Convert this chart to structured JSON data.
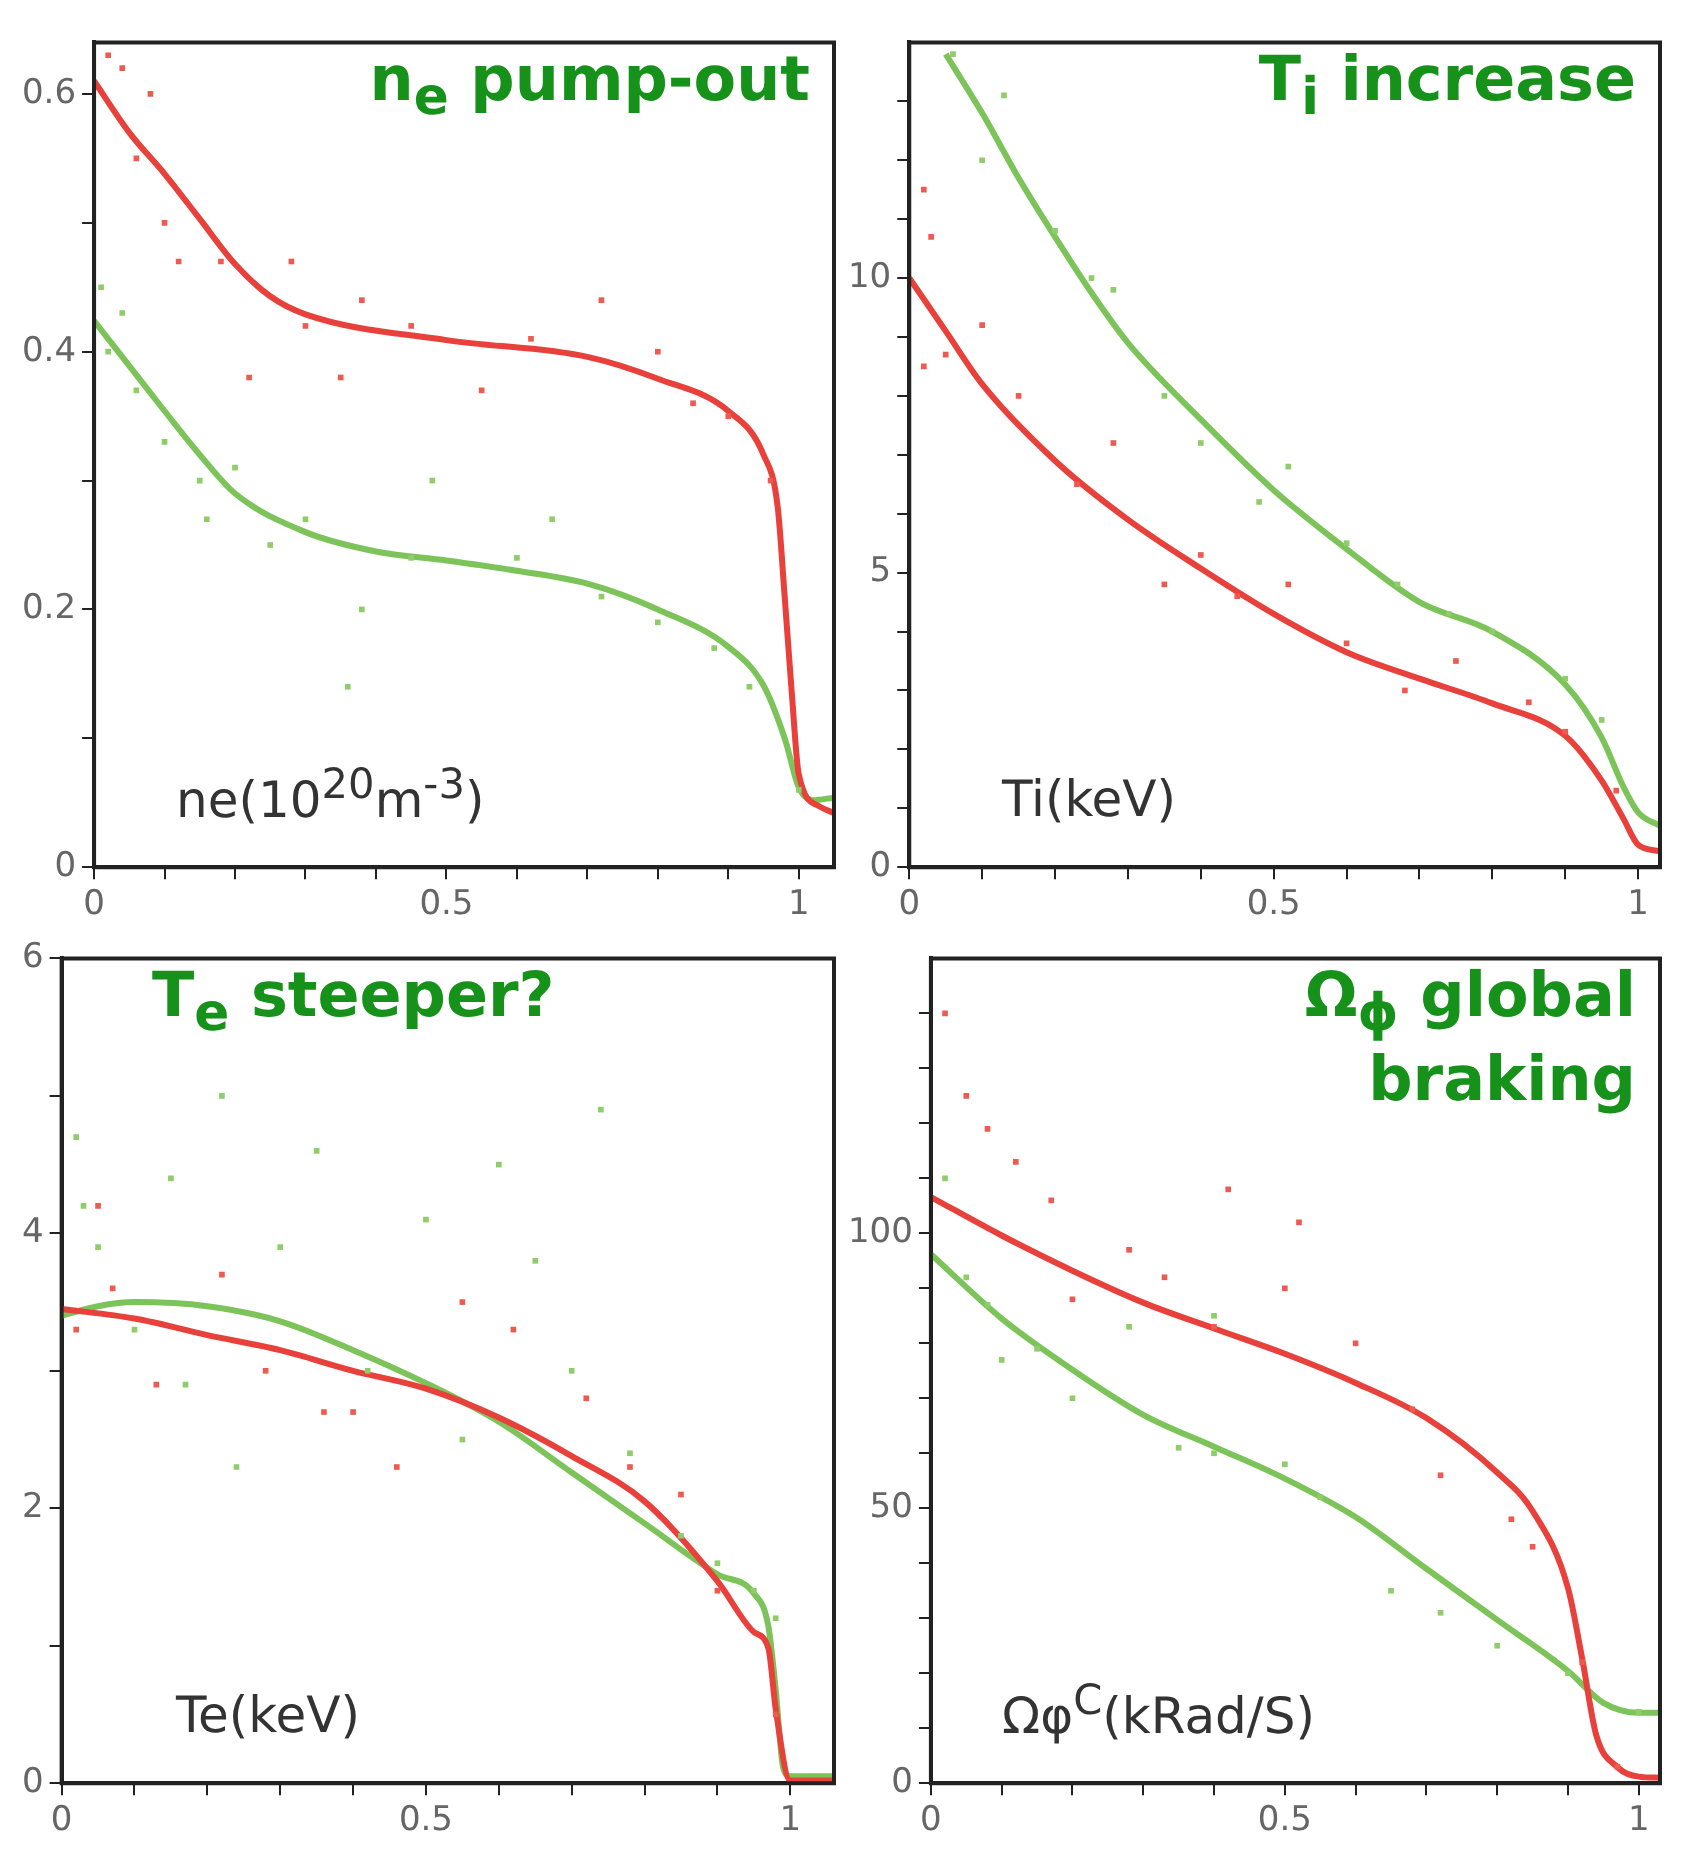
{
  "chart_data": [
    {
      "type": "line",
      "title": "n$_{e}$ pump-out",
      "annotations": [
        "ne(10$^{20}$m$^{-3}$)"
      ],
      "grid": false,
      "legend": false,
      "xlim": [
        0,
        1.05
      ],
      "xticks": [
        0,
        {
          "value": 0.1,
          "label": null
        },
        {
          "value": 0.2,
          "label": null
        },
        {
          "value": 0.3,
          "label": null
        },
        {
          "value": 0.4,
          "label": null
        },
        0.5,
        {
          "value": 0.6,
          "label": null
        },
        {
          "value": 0.7,
          "label": null
        },
        {
          "value": 0.8,
          "label": null
        },
        {
          "value": 0.9,
          "label": null
        },
        1
      ],
      "ylim": [
        0,
        0.64
      ],
      "yticks": [
        0,
        {
          "value": 0.1,
          "label": null
        },
        0.2,
        {
          "value": 0.3,
          "label": null
        },
        0.4,
        {
          "value": 0.5,
          "label": null
        },
        0.6
      ],
      "series": [
        {
          "marker": "none",
          "color": "#e8403a",
          "x": [
            0,
            0.05,
            0.1,
            0.15,
            0.2,
            0.25,
            0.3,
            0.5,
            0.7,
            0.8,
            0.9,
            0.95,
            0.97,
            0.98,
            0.99,
            1.0,
            1.03,
            1.05
          ],
          "values": [
            0.61,
            0.57,
            0.538,
            0.503,
            0.468,
            0.443,
            0.429,
            0.409,
            0.396,
            0.379,
            0.354,
            0.32,
            0.28,
            0.21,
            0.136,
            0.072,
            0.047,
            0.042
          ]
        },
        {
          "marker": "none",
          "color": "#7cc35a",
          "x": [
            0,
            0.05,
            0.1,
            0.15,
            0.2,
            0.3,
            0.4,
            0.5,
            0.6,
            0.7,
            0.8,
            0.9,
            0.95,
            0.98,
            1.0,
            1.02,
            1.05
          ],
          "values": [
            0.424,
            0.389,
            0.354,
            0.32,
            0.29,
            0.26,
            0.245,
            0.238,
            0.23,
            0.22,
            0.2,
            0.171,
            0.141,
            0.1,
            0.062,
            0.052,
            0.054
          ]
        },
        {
          "type": "scatter",
          "marker": "square",
          "color": "#ee5a50",
          "x": [
            0.02,
            0.04,
            0.06,
            0.08,
            0.1,
            0.12,
            0.18,
            0.22,
            0.28,
            0.3,
            0.35,
            0.38,
            0.45,
            0.55,
            0.62,
            0.72,
            0.8,
            0.85,
            0.9,
            0.96
          ],
          "values": [
            0.63,
            0.62,
            0.55,
            0.6,
            0.5,
            0.47,
            0.47,
            0.38,
            0.47,
            0.42,
            0.38,
            0.44,
            0.42,
            0.37,
            0.41,
            0.44,
            0.4,
            0.36,
            0.35,
            0.3
          ]
        },
        {
          "type": "scatter",
          "marker": "square",
          "color": "#8fcc6a",
          "x": [
            0.01,
            0.02,
            0.04,
            0.06,
            0.1,
            0.15,
            0.16,
            0.2,
            0.25,
            0.3,
            0.36,
            0.38,
            0.45,
            0.48,
            0.6,
            0.65,
            0.72,
            0.8,
            0.88,
            0.93,
            1.0
          ],
          "values": [
            0.45,
            0.4,
            0.43,
            0.37,
            0.33,
            0.3,
            0.27,
            0.31,
            0.25,
            0.27,
            0.14,
            0.2,
            0.24,
            0.3,
            0.24,
            0.27,
            0.21,
            0.19,
            0.17,
            0.14,
            0.06
          ]
        }
      ]
    },
    {
      "type": "line",
      "title": "T$_{i}$ increase",
      "annotations": [
        "Ti(keV)"
      ],
      "grid": false,
      "legend": false,
      "xlim": [
        0,
        1.03
      ],
      "xticks": [
        0,
        {
          "value": 0.1,
          "label": null
        },
        {
          "value": 0.2,
          "label": null
        },
        {
          "value": 0.3,
          "label": null
        },
        {
          "value": 0.4,
          "label": null
        },
        0.5,
        {
          "value": 0.6,
          "label": null
        },
        {
          "value": 0.7,
          "label": null
        },
        {
          "value": 0.8,
          "label": null
        },
        {
          "value": 0.9,
          "label": null
        },
        1
      ],
      "ylim": [
        0,
        14
      ],
      "yticks": [
        0,
        {
          "value": 1,
          "label": null
        },
        {
          "value": 2,
          "label": null
        },
        {
          "value": 3,
          "label": null
        },
        {
          "value": 4,
          "label": null
        },
        5,
        {
          "value": 6,
          "label": null
        },
        {
          "value": 7,
          "label": null
        },
        {
          "value": 8,
          "label": null
        },
        {
          "value": 9,
          "label": null
        },
        10,
        {
          "value": 11,
          "label": null
        },
        {
          "value": 12,
          "label": null
        },
        {
          "value": 13,
          "label": null
        }
      ],
      "series": [
        {
          "marker": "none",
          "color": "#e8403a",
          "x": [
            0,
            0.05,
            0.1,
            0.2,
            0.3,
            0.4,
            0.5,
            0.6,
            0.7,
            0.8,
            0.9,
            0.95,
            0.98,
            1.0,
            1.03
          ],
          "values": [
            10,
            9.1,
            8.2,
            6.9,
            5.9,
            5.07,
            4.3,
            3.65,
            3.2,
            2.78,
            2.23,
            1.47,
            0.82,
            0.38,
            0.27
          ]
        },
        {
          "marker": "none",
          "color": "#7cc35a",
          "x": [
            0.05,
            0.1,
            0.15,
            0.2,
            0.25,
            0.3,
            0.4,
            0.5,
            0.6,
            0.7,
            0.8,
            0.9,
            0.95,
            0.98,
            1.0,
            1.03
          ],
          "values": [
            13.8,
            12.8,
            11.7,
            10.7,
            9.75,
            8.9,
            7.6,
            6.4,
            5.4,
            4.5,
            4.0,
            3.1,
            2.2,
            1.36,
            0.93,
            0.7
          ]
        },
        {
          "type": "scatter",
          "marker": "square",
          "color": "#ee5a50",
          "x": [
            0.02,
            0.03,
            0.02,
            0.05,
            0.1,
            0.15,
            0.23,
            0.28,
            0.35,
            0.4,
            0.45,
            0.52,
            0.6,
            0.68,
            0.75,
            0.85,
            0.9,
            0.97
          ],
          "values": [
            11.5,
            10.7,
            8.5,
            8.7,
            9.2,
            8.0,
            6.5,
            7.2,
            4.8,
            5.3,
            4.6,
            4.8,
            3.8,
            3.0,
            3.5,
            2.8,
            2.3,
            1.3
          ]
        },
        {
          "type": "scatter",
          "marker": "square",
          "color": "#8fcc6a",
          "x": [
            0.06,
            0.1,
            0.13,
            0.2,
            0.25,
            0.28,
            0.35,
            0.4,
            0.48,
            0.52,
            0.6,
            0.67,
            0.74,
            0.8,
            0.9,
            0.95
          ],
          "values": [
            13.8,
            12.0,
            13.1,
            10.8,
            10.0,
            9.8,
            8.0,
            7.2,
            6.2,
            6.8,
            5.5,
            4.8,
            4.3,
            4.0,
            3.2,
            2.5
          ]
        }
      ]
    },
    {
      "type": "line",
      "title": "T$_{e}$ steeper?",
      "annotations": [
        "Te(keV)"
      ],
      "grid": false,
      "legend": false,
      "xlim": [
        0,
        1.06
      ],
      "xticks": [
        0,
        {
          "value": 0.1,
          "label": null
        },
        {
          "value": 0.2,
          "label": null
        },
        {
          "value": 0.3,
          "label": null
        },
        {
          "value": 0.4,
          "label": null
        },
        0.5,
        {
          "value": 0.6,
          "label": null
        },
        {
          "value": 0.7,
          "label": null
        },
        {
          "value": 0.8,
          "label": null
        },
        {
          "value": 0.9,
          "label": null
        },
        1
      ],
      "ylim": [
        0,
        6
      ],
      "yticks": [
        0,
        {
          "value": 1,
          "label": null
        },
        2,
        {
          "value": 3,
          "label": null
        },
        4,
        {
          "value": 5,
          "label": null
        },
        6
      ],
      "series": [
        {
          "marker": "none",
          "color": "#e8403a",
          "x": [
            0,
            0.1,
            0.2,
            0.3,
            0.4,
            0.5,
            0.6,
            0.7,
            0.8,
            0.9,
            0.95,
            0.97,
            0.98,
            1.0,
            1.06
          ],
          "values": [
            3.45,
            3.38,
            3.26,
            3.15,
            3.0,
            2.87,
            2.66,
            2.38,
            2.05,
            1.47,
            1.1,
            0.98,
            0.54,
            0.02,
            0.02
          ]
        },
        {
          "marker": "none",
          "color": "#7cc35a",
          "x": [
            0,
            0.05,
            0.1,
            0.2,
            0.3,
            0.4,
            0.5,
            0.6,
            0.7,
            0.8,
            0.9,
            0.95,
            0.97,
            0.98,
            0.99,
            1.0,
            1.06
          ],
          "values": [
            3.4,
            3.47,
            3.5,
            3.47,
            3.36,
            3.15,
            2.91,
            2.63,
            2.26,
            1.89,
            1.52,
            1.38,
            1.14,
            0.68,
            0.12,
            0.05,
            0.05
          ]
        },
        {
          "type": "scatter",
          "marker": "square",
          "color": "#ee5a50",
          "x": [
            0.02,
            0.05,
            0.07,
            0.13,
            0.22,
            0.28,
            0.36,
            0.4,
            0.46,
            0.55,
            0.62,
            0.72,
            0.78,
            0.85,
            0.9,
            0.98
          ],
          "values": [
            3.3,
            4.2,
            3.6,
            2.9,
            3.7,
            3.0,
            2.7,
            2.7,
            2.3,
            3.5,
            3.3,
            2.8,
            2.3,
            2.1,
            1.4,
            0.5
          ]
        },
        {
          "type": "scatter",
          "marker": "square",
          "color": "#8fcc6a",
          "x": [
            0.02,
            0.03,
            0.05,
            0.1,
            0.15,
            0.17,
            0.22,
            0.24,
            0.3,
            0.35,
            0.42,
            0.5,
            0.55,
            0.6,
            0.65,
            0.7,
            0.74,
            0.78,
            0.85,
            0.9,
            0.95,
            0.98
          ],
          "values": [
            4.7,
            4.2,
            3.9,
            3.3,
            4.4,
            2.9,
            5.0,
            2.3,
            3.9,
            4.6,
            3.0,
            4.1,
            2.5,
            4.5,
            3.8,
            3.0,
            4.9,
            2.4,
            1.8,
            1.6,
            1.4,
            1.2
          ]
        }
      ]
    },
    {
      "type": "line",
      "title": "Ω$_{ϕ}$ global braking",
      "annotations": [
        "Ωφ$^{C}$(kRad/S)"
      ],
      "grid": false,
      "legend": false,
      "xlim": [
        0,
        1.03
      ],
      "xticks": [
        0,
        {
          "value": 0.1,
          "label": null
        },
        {
          "value": 0.2,
          "label": null
        },
        {
          "value": 0.3,
          "label": null
        },
        {
          "value": 0.4,
          "label": null
        },
        0.5,
        {
          "value": 0.6,
          "label": null
        },
        {
          "value": 0.7,
          "label": null
        },
        {
          "value": 0.8,
          "label": null
        },
        {
          "value": 0.9,
          "label": null
        },
        1
      ],
      "ylim": [
        0,
        150
      ],
      "yticks": [
        0,
        {
          "value": 10,
          "label": null
        },
        {
          "value": 20,
          "label": null
        },
        {
          "value": 30,
          "label": null
        },
        {
          "value": 40,
          "label": null
        },
        50,
        {
          "value": 60,
          "label": null
        },
        {
          "value": 70,
          "label": null
        },
        {
          "value": 80,
          "label": null
        },
        {
          "value": 90,
          "label": null
        },
        100,
        {
          "value": 110,
          "label": null
        },
        {
          "value": 120,
          "label": null
        },
        {
          "value": 130,
          "label": null
        },
        {
          "value": 140,
          "label": null
        }
      ],
      "series": [
        {
          "marker": "none",
          "color": "#e8403a",
          "x": [
            0,
            0.1,
            0.2,
            0.3,
            0.4,
            0.5,
            0.6,
            0.7,
            0.8,
            0.85,
            0.9,
            0.92,
            0.94,
            0.97,
            1.0,
            1.03
          ],
          "values": [
            106.6,
            99.6,
            93.2,
            87.4,
            82.7,
            78.1,
            72.8,
            66.4,
            56.5,
            49.5,
            35.5,
            22.7,
            8.7,
            2.9,
            1.2,
            1
          ]
        },
        {
          "marker": "none",
          "color": "#7cc35a",
          "x": [
            0,
            0.1,
            0.2,
            0.3,
            0.4,
            0.5,
            0.6,
            0.7,
            0.8,
            0.9,
            0.95,
            1.0,
            1.03
          ],
          "values": [
            96.2,
            84.5,
            75.2,
            67,
            61.2,
            55.4,
            48.4,
            39,
            29.7,
            20.4,
            14.6,
            12.8,
            12.8
          ]
        },
        {
          "type": "scatter",
          "marker": "square",
          "color": "#ee5a50",
          "x": [
            0.02,
            0.05,
            0.08,
            0.12,
            0.17,
            0.2,
            0.28,
            0.33,
            0.4,
            0.42,
            0.52,
            0.5,
            0.6,
            0.68,
            0.72,
            0.82,
            0.85,
            0.92,
            0.97
          ],
          "values": [
            140,
            125,
            119,
            113,
            106,
            88,
            97,
            92,
            83,
            108,
            102,
            90,
            80,
            68,
            56,
            48,
            43,
            22,
            3
          ]
        },
        {
          "type": "scatter",
          "marker": "square",
          "color": "#8fcc6a",
          "x": [
            0.02,
            0.05,
            0.08,
            0.1,
            0.15,
            0.2,
            0.28,
            0.35,
            0.4,
            0.4,
            0.5,
            0.55,
            0.65,
            0.72,
            0.8,
            0.9,
            1.0
          ],
          "values": [
            110,
            92,
            87,
            77,
            79,
            70,
            83,
            61,
            85,
            60,
            58,
            52,
            35,
            31,
            25,
            20,
            13
          ]
        }
      ]
    }
  ]
}
